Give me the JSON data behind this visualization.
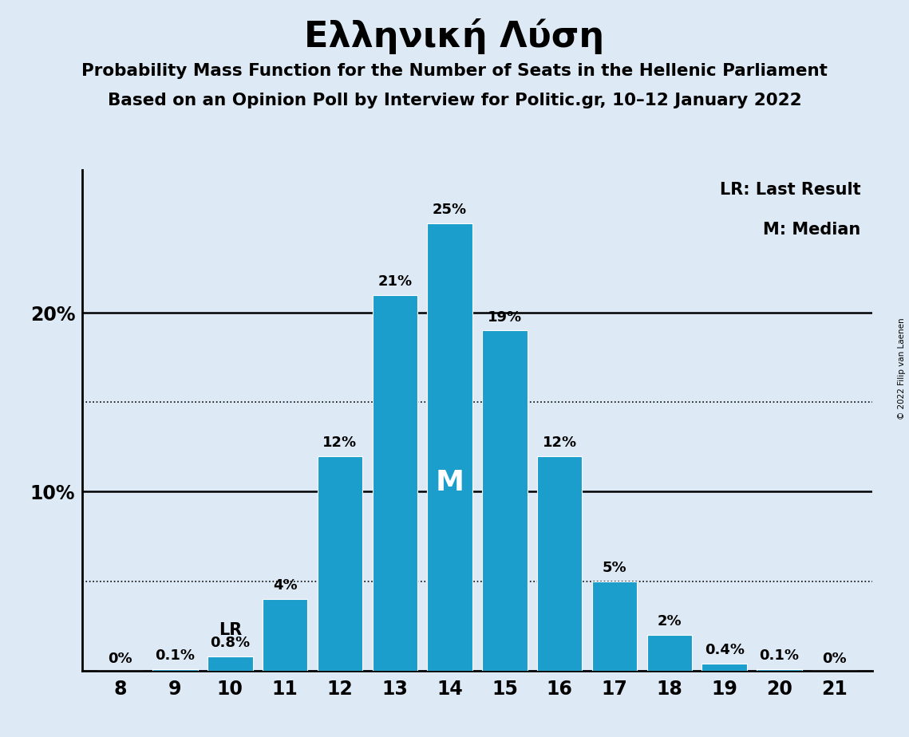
{
  "title": "Ελληνική Λύση",
  "subtitle1": "Probability Mass Function for the Number of Seats in the Hellenic Parliament",
  "subtitle2": "Based on an Opinion Poll by Interview for Politic.gr, 10–12 January 2022",
  "copyright": "© 2022 Filip van Laenen",
  "seats": [
    8,
    9,
    10,
    11,
    12,
    13,
    14,
    15,
    16,
    17,
    18,
    19,
    20,
    21
  ],
  "probabilities": [
    0.0,
    0.1,
    0.8,
    4.0,
    12.0,
    21.0,
    25.0,
    19.0,
    12.0,
    5.0,
    2.0,
    0.4,
    0.1,
    0.0
  ],
  "bar_color": "#1B9ECC",
  "background_color": "#DDE9F5",
  "median_seat": 14,
  "last_result_seat": 10,
  "legend_lr": "LR: Last Result",
  "legend_m": "M: Median",
  "solid_gridlines": [
    10,
    20
  ],
  "dotted_gridlines": [
    5,
    15
  ],
  "ylim": [
    0,
    28
  ],
  "bar_labels": [
    "0%",
    "0.1%",
    "0.8%",
    "4%",
    "12%",
    "21%",
    "25%",
    "19%",
    "12%",
    "5%",
    "2%",
    "0.4%",
    "0.1%",
    "0%"
  ]
}
